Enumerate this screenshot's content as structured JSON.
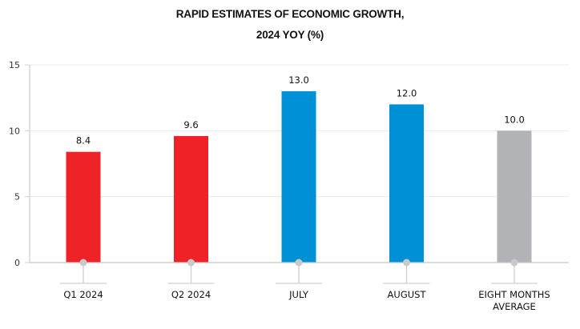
{
  "chart_data": {
    "type": "bar",
    "title_lines": [
      "RAPID ESTIMATES OF ECONOMIC GROWTH,",
      "2024 YOY (%)"
    ],
    "xlabel": "",
    "ylabel": "",
    "ylim": [
      0,
      15
    ],
    "yticks": [
      0,
      5,
      10,
      15
    ],
    "grid": true,
    "categories": [
      [
        "Q1 2024"
      ],
      [
        "Q2 2024"
      ],
      [
        "JULY"
      ],
      [
        "AUGUST"
      ],
      [
        "EIGHT MONTHS",
        "AVERAGE"
      ]
    ],
    "values": [
      8.4,
      9.6,
      13.0,
      12.0,
      10.0
    ],
    "value_labels": [
      "8.4",
      "9.6",
      "13.0",
      "12.0",
      "10.0"
    ],
    "bar_colors": [
      "#ee2227",
      "#ee2227",
      "#0090d6",
      "#0090d6",
      "#b1b3b6"
    ],
    "legend": null
  }
}
